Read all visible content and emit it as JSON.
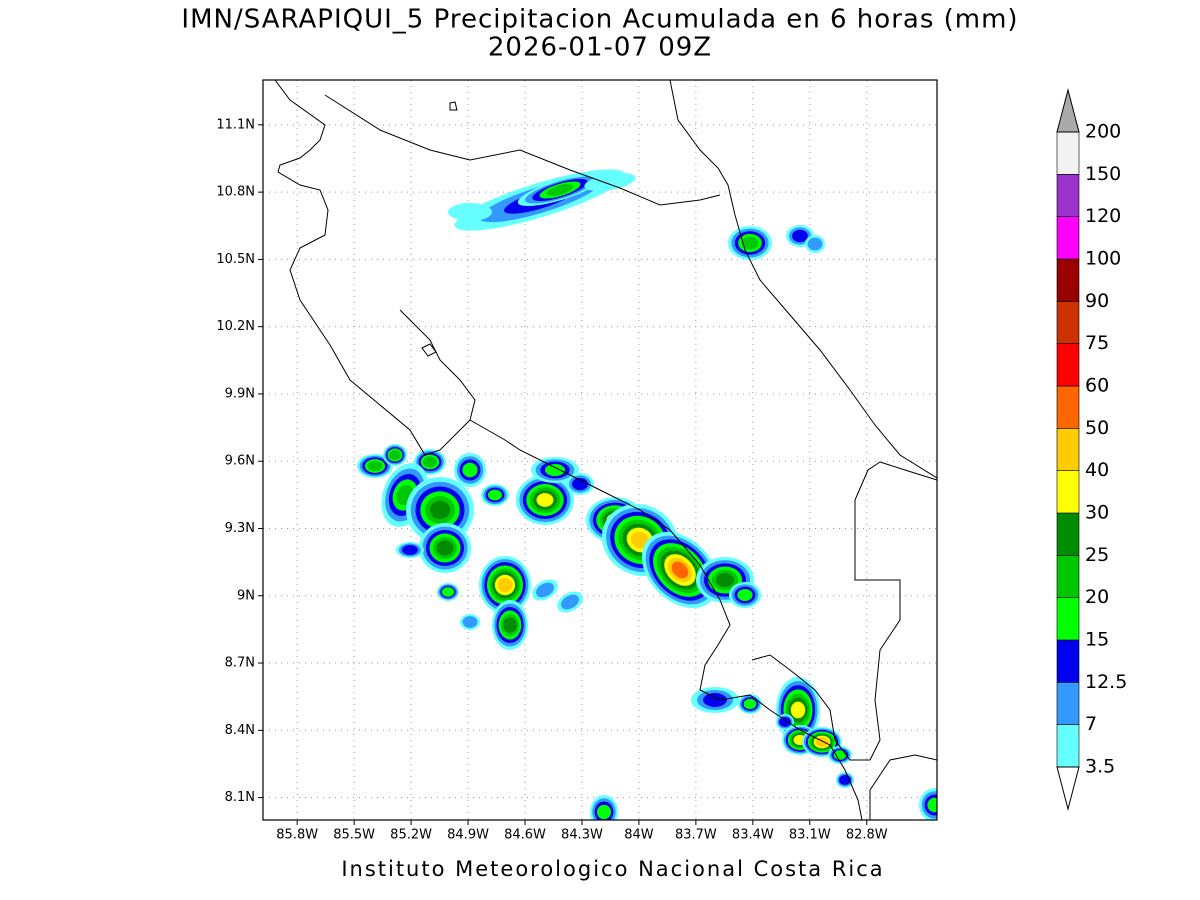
{
  "header": {
    "title": "IMN/SARAPIQUI_5 Precipitacion Acumulada en 6 horas (mm)",
    "subtitle": "2026-01-07 09Z"
  },
  "map": {
    "xlim": [
      -85.98,
      -82.43
    ],
    "ylim": [
      8.0,
      11.3
    ],
    "xticks": [
      {
        "value": -85.8,
        "label": "85.8W"
      },
      {
        "value": -85.5,
        "label": "85.5W"
      },
      {
        "value": -85.2,
        "label": "85.2W"
      },
      {
        "value": -84.9,
        "label": "84.9W"
      },
      {
        "value": -84.6,
        "label": "84.6W"
      },
      {
        "value": -84.3,
        "label": "84.3W"
      },
      {
        "value": -84.0,
        "label": "84W"
      },
      {
        "value": -83.7,
        "label": "83.7W"
      },
      {
        "value": -83.4,
        "label": "83.4W"
      },
      {
        "value": -83.1,
        "label": "83.1W"
      },
      {
        "value": -82.8,
        "label": "82.8W"
      }
    ],
    "yticks": [
      {
        "value": 8.1,
        "label": "8.1N"
      },
      {
        "value": 8.4,
        "label": "8.4N"
      },
      {
        "value": 8.7,
        "label": "8.7N"
      },
      {
        "value": 9.0,
        "label": "9N"
      },
      {
        "value": 9.3,
        "label": "9.3N"
      },
      {
        "value": 9.6,
        "label": "9.6N"
      },
      {
        "value": 9.9,
        "label": "9.9N"
      },
      {
        "value": 10.2,
        "label": "10.2N"
      },
      {
        "value": 10.5,
        "label": "10.5N"
      },
      {
        "value": 10.8,
        "label": "10.8N"
      },
      {
        "value": 11.1,
        "label": "11.1N"
      }
    ],
    "grid": true
  },
  "colorbar": {
    "levels": [
      3.5,
      7,
      12.5,
      15,
      20,
      25,
      30,
      40,
      50,
      60,
      75,
      90,
      100,
      120,
      150,
      200
    ],
    "colors": [
      "#66ffff",
      "#3399ff",
      "#0000ee",
      "#00ff00",
      "#00c800",
      "#008c00",
      "#ffff00",
      "#ffcc00",
      "#ff6600",
      "#ff0000",
      "#cc3300",
      "#990000",
      "#ff00ff",
      "#9933cc",
      "#f2f2f2"
    ],
    "under_color": "#ffffff",
    "over_color": "#aaaaaa"
  },
  "footer": "Instituto Meteorologico Nacional Costa Rica"
}
